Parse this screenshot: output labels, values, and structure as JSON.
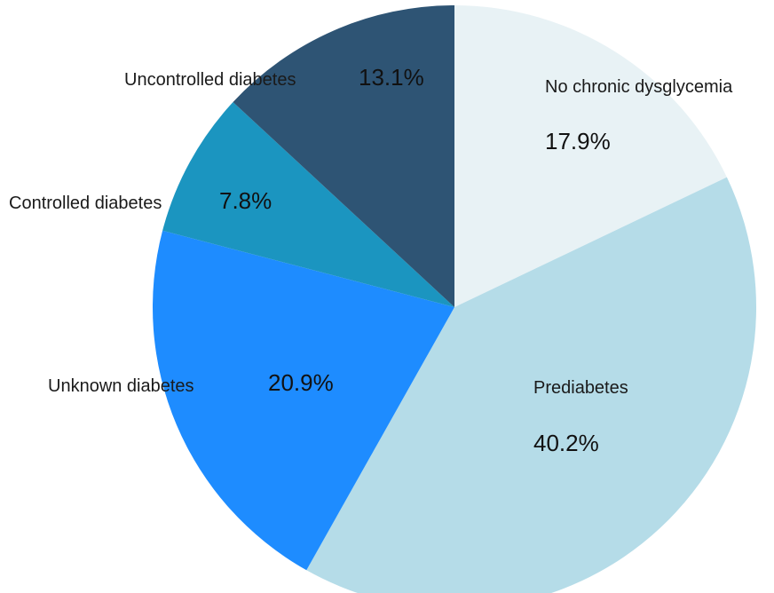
{
  "chart_data": {
    "type": "pie",
    "title": "",
    "start_angle_deg": 0,
    "direction": "clockwise",
    "legend": "none",
    "slices": [
      {
        "label": "No chronic dysglycemia",
        "value": 17.9,
        "value_text": "17.9%",
        "color": "#e8f2f5"
      },
      {
        "label": "Prediabetes",
        "value": 40.2,
        "value_text": "40.2%",
        "color": "#b5dce8"
      },
      {
        "label": "Unknown diabetes",
        "value": 20.9,
        "value_text": "20.9%",
        "color": "#1e8cff"
      },
      {
        "label": "Controlled diabetes",
        "value": 7.8,
        "value_text": "7.8%",
        "color": "#1b95c0"
      },
      {
        "label": "Uncontrolled diabetes",
        "value": 13.1,
        "value_text": "13.1%",
        "color": "#2e5474"
      }
    ]
  }
}
